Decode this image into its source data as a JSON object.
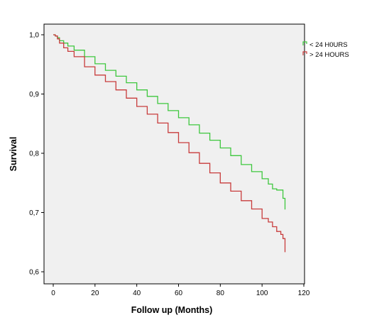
{
  "chart_data": {
    "type": "line",
    "subtype": "kaplan-meier-step",
    "title": "",
    "xlabel": "Follow up (Months)",
    "ylabel": "Survival",
    "xlim": [
      0,
      120
    ],
    "ylim": [
      0.6,
      1.0
    ],
    "xticks": [
      "0",
      "20",
      "40",
      "60",
      "80",
      "100",
      "120"
    ],
    "yticks": [
      "0,6",
      "0,7",
      "0,8",
      "0,9",
      "1,0"
    ],
    "grid": false,
    "legend_position": "top-right",
    "plot_background": "#f0f0f0",
    "series": [
      {
        "name": "< 24 H0URS",
        "color": "#3ec73e",
        "x": [
          0,
          1,
          2,
          3,
          5,
          7,
          10,
          15,
          20,
          25,
          30,
          35,
          40,
          45,
          50,
          55,
          60,
          65,
          70,
          75,
          80,
          85,
          90,
          95,
          100,
          103,
          105,
          107,
          110,
          111
        ],
        "y": [
          1.0,
          0.998,
          0.995,
          0.99,
          0.986,
          0.981,
          0.974,
          0.963,
          0.951,
          0.94,
          0.93,
          0.919,
          0.907,
          0.896,
          0.884,
          0.872,
          0.86,
          0.848,
          0.834,
          0.822,
          0.809,
          0.796,
          0.781,
          0.769,
          0.757,
          0.748,
          0.74,
          0.738,
          0.724,
          0.705
        ]
      },
      {
        "name": "> 24 HOURS",
        "color": "#c83c3c",
        "x": [
          0,
          1,
          2,
          3,
          5,
          7,
          10,
          15,
          20,
          25,
          30,
          35,
          40,
          45,
          50,
          55,
          60,
          65,
          70,
          75,
          80,
          85,
          90,
          95,
          100,
          103,
          105,
          107,
          109,
          110,
          111
        ],
        "y": [
          1.0,
          0.998,
          0.993,
          0.986,
          0.978,
          0.972,
          0.963,
          0.946,
          0.932,
          0.921,
          0.907,
          0.893,
          0.879,
          0.866,
          0.851,
          0.835,
          0.818,
          0.801,
          0.783,
          0.767,
          0.75,
          0.736,
          0.72,
          0.706,
          0.69,
          0.684,
          0.676,
          0.668,
          0.663,
          0.656,
          0.633
        ]
      }
    ]
  }
}
